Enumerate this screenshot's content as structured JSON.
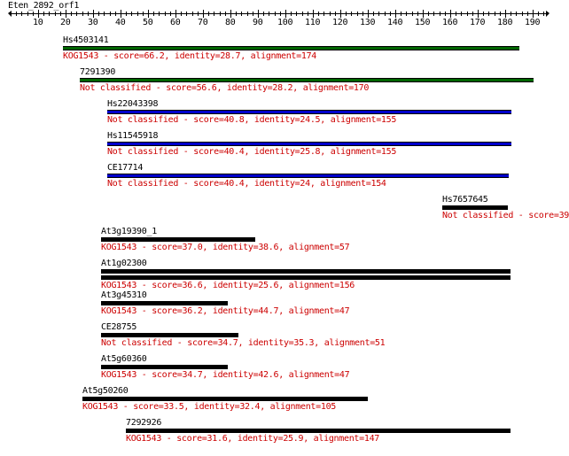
{
  "query": {
    "name": "Eten_2892_orf1",
    "length": 190,
    "ticks": [
      10,
      20,
      30,
      40,
      50,
      60,
      70,
      80,
      90,
      100,
      110,
      120,
      130,
      140,
      150,
      160,
      170,
      180,
      190
    ]
  },
  "colors": {
    "kog_hit": "#006600",
    "high_hit": "#0000cc",
    "low_hit": "#000000",
    "description": "#cc0000"
  },
  "hits": [
    {
      "name": "Hs4503141",
      "description": "KOG1543 - score=66.2, identity=28.7, alignment=174",
      "start": 19,
      "end": 185,
      "color": "kog_hit",
      "double": false
    },
    {
      "name": "7291390",
      "description": "Not classified - score=56.6, identity=28.2, alignment=170",
      "start": 25,
      "end": 190,
      "color": "kog_hit",
      "double": false
    },
    {
      "name": "Hs22043398",
      "description": "Not classified - score=40.8, identity=24.5, alignment=155",
      "start": 35,
      "end": 182,
      "color": "high_hit",
      "double": false
    },
    {
      "name": "Hs11545918",
      "description": "Not classified - score=40.4, identity=25.8, alignment=155",
      "start": 35,
      "end": 182,
      "color": "high_hit",
      "double": false
    },
    {
      "name": "CE17714",
      "description": "Not classified - score=40.4, identity=24, alignment=154",
      "start": 35,
      "end": 181,
      "color": "high_hit",
      "double": false
    },
    {
      "name": "Hs7657645",
      "description": "Not classified - score=39",
      "start": 157,
      "end": 181,
      "color": "low_hit",
      "double": false
    },
    {
      "name": "At3g19390_1",
      "description": "KOG1543 - score=37.0, identity=38.6, alignment=57",
      "start": 33,
      "end": 89,
      "color": "low_hit",
      "double": false
    },
    {
      "name": "At1g02300",
      "description": "KOG1543 - score=36.6, identity=25.6, alignment=156",
      "start": 33,
      "end": 182,
      "color": "low_hit",
      "double": true
    },
    {
      "name": "At3g45310",
      "description": "KOG1543 - score=36.2, identity=44.7, alignment=47",
      "start": 33,
      "end": 79,
      "color": "low_hit",
      "double": false
    },
    {
      "name": "CE28755",
      "description": "Not classified - score=34.7, identity=35.3, alignment=51",
      "start": 33,
      "end": 83,
      "color": "low_hit",
      "double": false
    },
    {
      "name": "At5g60360",
      "description": "KOG1543 - score=34.7, identity=42.6, alignment=47",
      "start": 33,
      "end": 79,
      "color": "low_hit",
      "double": false
    },
    {
      "name": "At5g50260",
      "description": "KOG1543 - score=33.5, identity=32.4, alignment=105",
      "start": 26,
      "end": 130,
      "color": "low_hit",
      "double": false
    },
    {
      "name": "7292926",
      "description": "KOG1543 - score=31.6, identity=25.9, alignment=147",
      "start": 42,
      "end": 182,
      "color": "low_hit",
      "double": false
    }
  ]
}
